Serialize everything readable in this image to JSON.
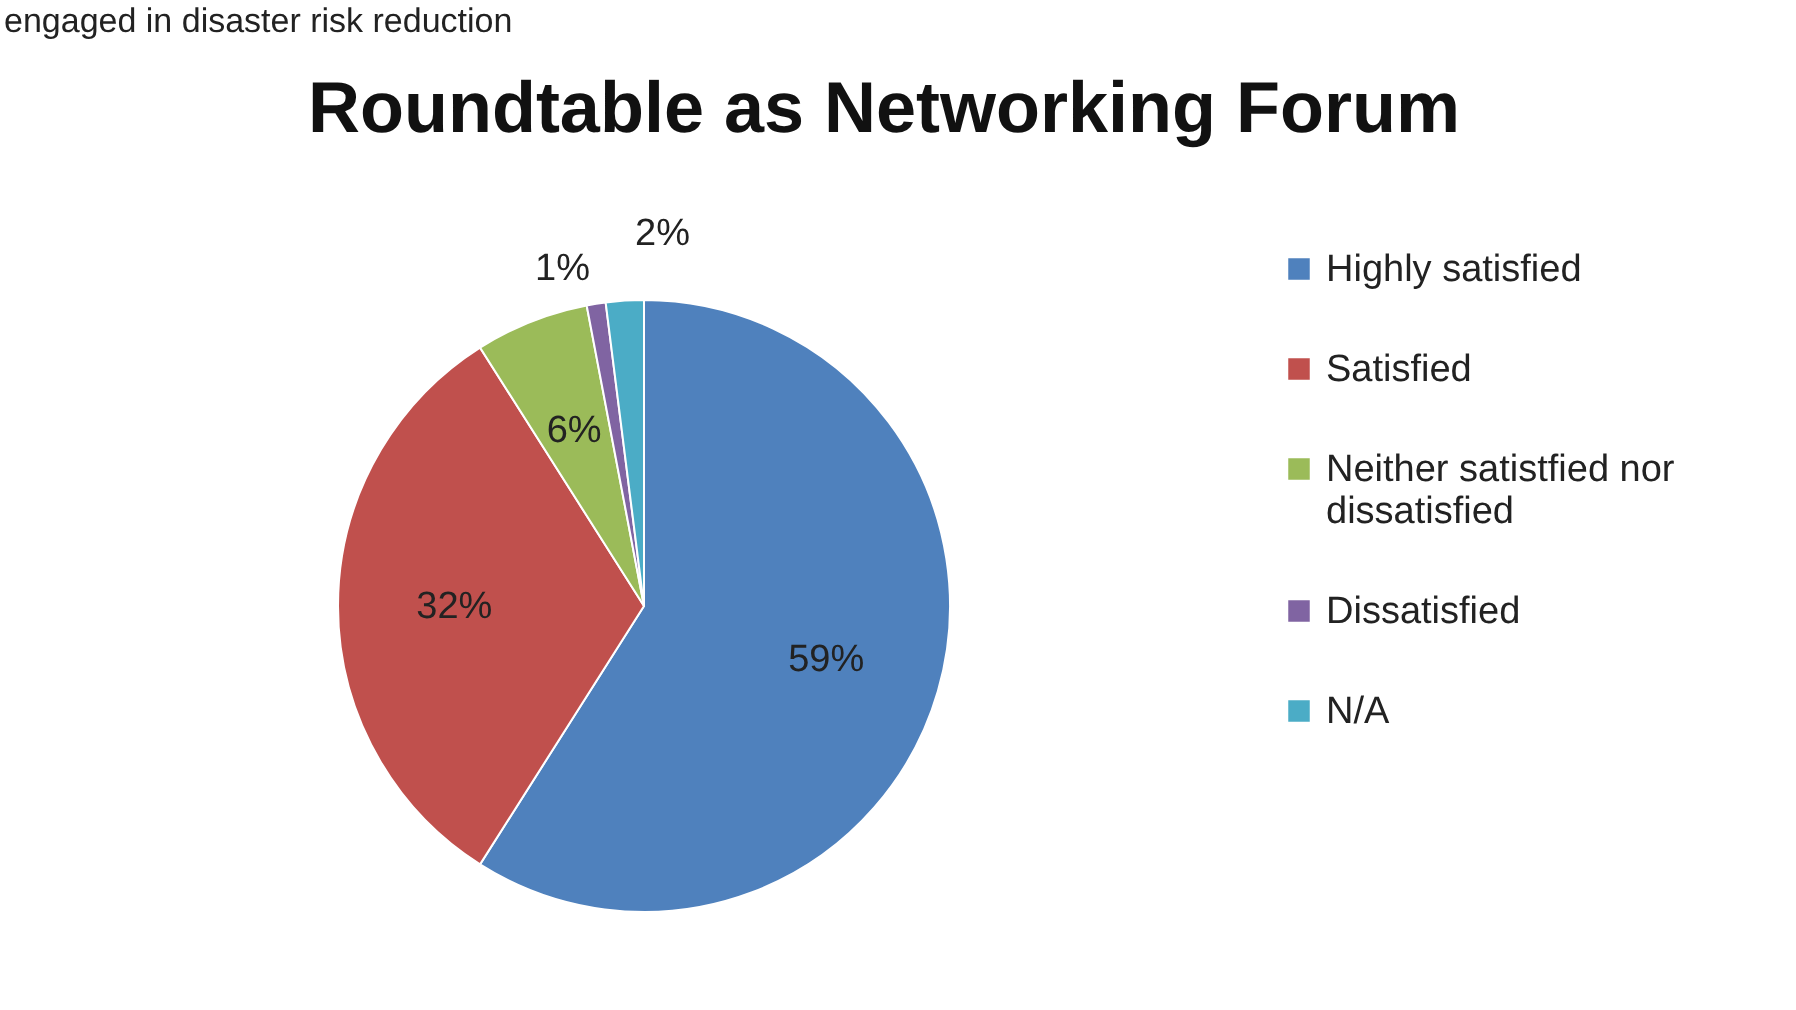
{
  "chart_data": {
    "type": "pie",
    "title": "Roundtable as Networking Forum",
    "annotations": [
      "engaged in disaster risk reduction"
    ],
    "categories": [
      "Highly satisfied",
      "Satisfied",
      "Neither satistfied nor dissatisfied",
      "Dissatisfied",
      "N/A"
    ],
    "values": [
      59,
      32,
      6,
      1,
      2
    ],
    "colors": [
      "#4f81bd",
      "#c0504d",
      "#9bbb59",
      "#8064a2",
      "#4bacc6"
    ],
    "value_labels": [
      "59%",
      "32%",
      "6%",
      "1%",
      "2%"
    ],
    "legend": "right"
  }
}
